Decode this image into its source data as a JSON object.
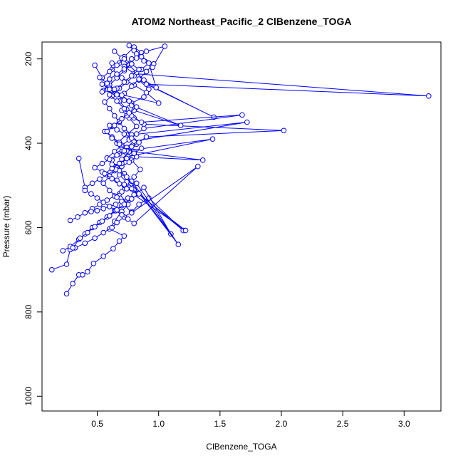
{
  "chart_data": {
    "type": "line",
    "title": "ATOM2 Northeast_Pacific_2 ClBenzene_TOGA",
    "xlabel": "ClBenzene_TOGA",
    "ylabel": "Pressure (mbar)",
    "xlim": [
      0.05,
      3.3
    ],
    "ylim": [
      1035,
      160
    ],
    "y_reversed": true,
    "xticks": [
      0.5,
      1.0,
      1.5,
      2.0,
      2.5,
      3.0
    ],
    "xtick_labels": [
      "0.5",
      "1.0",
      "1.5",
      "2.0",
      "2.5",
      "3.0"
    ],
    "yticks": [
      200,
      400,
      600,
      800,
      1000
    ],
    "ytick_labels": [
      "200",
      "400",
      "600",
      "800",
      "1000"
    ],
    "grid": false,
    "legend": "none",
    "color": "#0000ff",
    "marker": "open-circle",
    "series": [
      {
        "x": [
          0.25,
          0.3,
          0.35,
          0.38,
          0.42,
          0.47,
          0.55,
          0.63,
          0.68,
          0.72,
          0.6,
          0.64,
          0.7,
          0.75,
          0.68,
          0.72,
          0.8,
          0.85,
          0.78,
          0.7,
          0.66,
          0.74,
          0.82,
          0.76,
          0.7,
          0.78,
          0.88,
          0.92,
          0.84,
          1.45,
          0.9,
          3.2,
          0.8,
          0.72,
          0.78,
          0.86,
          0.8,
          0.72,
          0.68,
          0.62,
          0.7,
          0.8,
          0.9,
          1.0,
          0.55,
          0.6,
          0.62
        ],
        "y": [
          757,
          733,
          712,
          712,
          705,
          685,
          668,
          650,
          632,
          620,
          603,
          585,
          562,
          545,
          520,
          500,
          480,
          462,
          440,
          420,
          400,
          380,
          360,
          340,
          322,
          305,
          290,
          272,
          250,
          338,
          260,
          288,
          235,
          218,
          200,
          185,
          172,
          195,
          210,
          225,
          245,
          262,
          280,
          305,
          275,
          255,
          210
        ]
      },
      {
        "x": [
          0.13,
          0.25,
          0.28,
          0.32,
          0.4,
          0.48,
          0.55,
          0.62,
          0.66,
          0.72,
          0.78,
          0.84,
          0.92,
          1.2,
          0.8,
          0.74,
          0.68,
          0.64,
          0.7,
          0.76,
          0.82,
          0.9,
          2.02,
          0.88,
          0.8,
          0.74,
          0.68,
          0.72,
          0.78,
          0.84,
          0.9,
          0.96,
          0.86,
          0.8,
          0.76,
          0.82,
          0.88,
          0.95,
          1.05,
          0.9,
          0.82
        ],
        "y": [
          700,
          687,
          652,
          648,
          637,
          625,
          612,
          600,
          588,
          575,
          563,
          545,
          530,
          607,
          510,
          492,
          475,
          455,
          438,
          420,
          402,
          385,
          370,
          355,
          340,
          320,
          300,
          282,
          265,
          248,
          230,
          212,
          195,
          180,
          168,
          188,
          205,
          220,
          170,
          182,
          198
        ]
      },
      {
        "x": [
          0.22,
          0.28,
          0.35,
          0.4,
          0.46,
          0.52,
          0.58,
          0.64,
          0.7,
          0.76,
          0.82,
          0.88,
          1.1,
          0.78,
          0.72,
          0.66,
          0.62,
          0.68,
          0.74,
          0.8,
          1.72,
          0.78,
          0.72,
          0.68,
          0.64,
          0.6,
          0.56,
          0.62,
          0.68,
          0.74,
          0.8,
          0.86,
          0.92,
          0.98,
          0.88,
          0.82,
          0.76,
          0.7,
          0.64
        ],
        "y": [
          655,
          645,
          628,
          615,
          600,
          588,
          575,
          560,
          548,
          535,
          520,
          505,
          615,
          490,
          472,
          458,
          440,
          425,
          410,
          395,
          350,
          380,
          365,
          350,
          335,
          318,
          302,
          288,
          270,
          255,
          240,
          225,
          210,
          268,
          250,
          232,
          215,
          198,
          182
        ]
      },
      {
        "x": [
          0.28,
          0.34,
          0.4,
          0.46,
          0.52,
          0.58,
          0.64,
          0.7,
          0.76,
          0.82,
          1.16,
          0.74,
          0.68,
          0.62,
          0.58,
          0.64,
          0.7,
          0.76,
          0.82,
          0.88,
          1.68,
          0.86,
          0.78,
          0.72,
          0.66,
          0.6,
          0.66,
          0.72,
          0.78,
          0.84,
          0.78,
          0.72,
          0.66,
          0.6,
          0.54
        ],
        "y": [
          583,
          575,
          565,
          555,
          545,
          535,
          525,
          515,
          505,
          495,
          640,
          480,
          465,
          450,
          435,
          420,
          405,
          392,
          378,
          365,
          333,
          350,
          335,
          318,
          300,
          285,
          270,
          255,
          240,
          225,
          212,
          228,
          245,
          262,
          278
        ]
      },
      {
        "x": [
          0.35,
          0.4,
          0.46,
          0.52,
          0.58,
          0.64,
          0.7,
          0.76,
          0.82,
          1.36,
          0.8,
          0.74,
          0.68,
          0.62,
          0.56,
          0.62,
          0.68,
          0.74,
          0.8,
          1.18,
          0.78,
          0.72,
          0.66,
          0.6,
          0.54,
          0.6,
          0.66,
          0.72,
          0.78,
          0.72,
          0.66,
          0.6,
          0.54,
          0.48
        ],
        "y": [
          436,
          505,
          495,
          485,
          475,
          465,
          455,
          445,
          432,
          440,
          420,
          410,
          398,
          385,
          372,
          360,
          348,
          335,
          322,
          358,
          310,
          298,
          285,
          272,
          260,
          248,
          236,
          224,
          212,
          200,
          215,
          230,
          245,
          215
        ]
      },
      {
        "x": [
          0.4,
          0.45,
          0.5,
          0.55,
          0.6,
          0.65,
          0.7,
          0.75,
          0.8,
          1.32,
          0.78,
          0.72,
          0.66,
          0.6,
          0.55,
          0.6,
          0.65,
          0.7,
          0.75,
          1.44,
          0.74,
          0.68,
          0.62,
          0.58,
          0.64,
          0.7,
          0.76,
          0.82,
          0.76,
          0.7,
          0.64,
          0.58,
          0.52
        ],
        "y": [
          512,
          520,
          530,
          540,
          550,
          560,
          570,
          580,
          590,
          455,
          565,
          545,
          528,
          512,
          495,
          478,
          462,
          448,
          432,
          390,
          418,
          402,
          388,
          372,
          358,
          342,
          328,
          314,
          300,
          286,
          272,
          258,
          244
        ]
      },
      {
        "x": [
          0.45,
          0.5,
          0.55,
          0.6,
          0.65,
          0.7,
          0.75,
          0.8,
          1.22,
          0.78,
          0.72,
          0.66,
          0.6,
          0.54,
          0.48,
          0.54,
          0.6,
          0.66,
          0.72,
          0.78,
          0.84,
          0.78,
          0.72,
          0.66,
          0.6
        ],
        "y": [
          562,
          560,
          555,
          550,
          545,
          538,
          530,
          522,
          607,
          508,
          498,
          488,
          478,
          468,
          458,
          448,
          438,
          428,
          418,
          408,
          398,
          388,
          378,
          368,
          358
        ]
      },
      {
        "x": [
          0.3,
          0.36,
          0.42,
          0.48,
          0.54,
          0.6,
          0.66,
          0.72,
          0.78,
          0.84,
          0.74,
          0.68,
          0.62,
          0.56,
          0.62,
          0.68,
          0.74,
          0.8,
          0.86
        ],
        "y": [
          648,
          625,
          612,
          598,
          585,
          572,
          558,
          545,
          532,
          520,
          508,
          496,
          484,
          472,
          460,
          448,
          436,
          424,
          412
        ]
      }
    ]
  }
}
